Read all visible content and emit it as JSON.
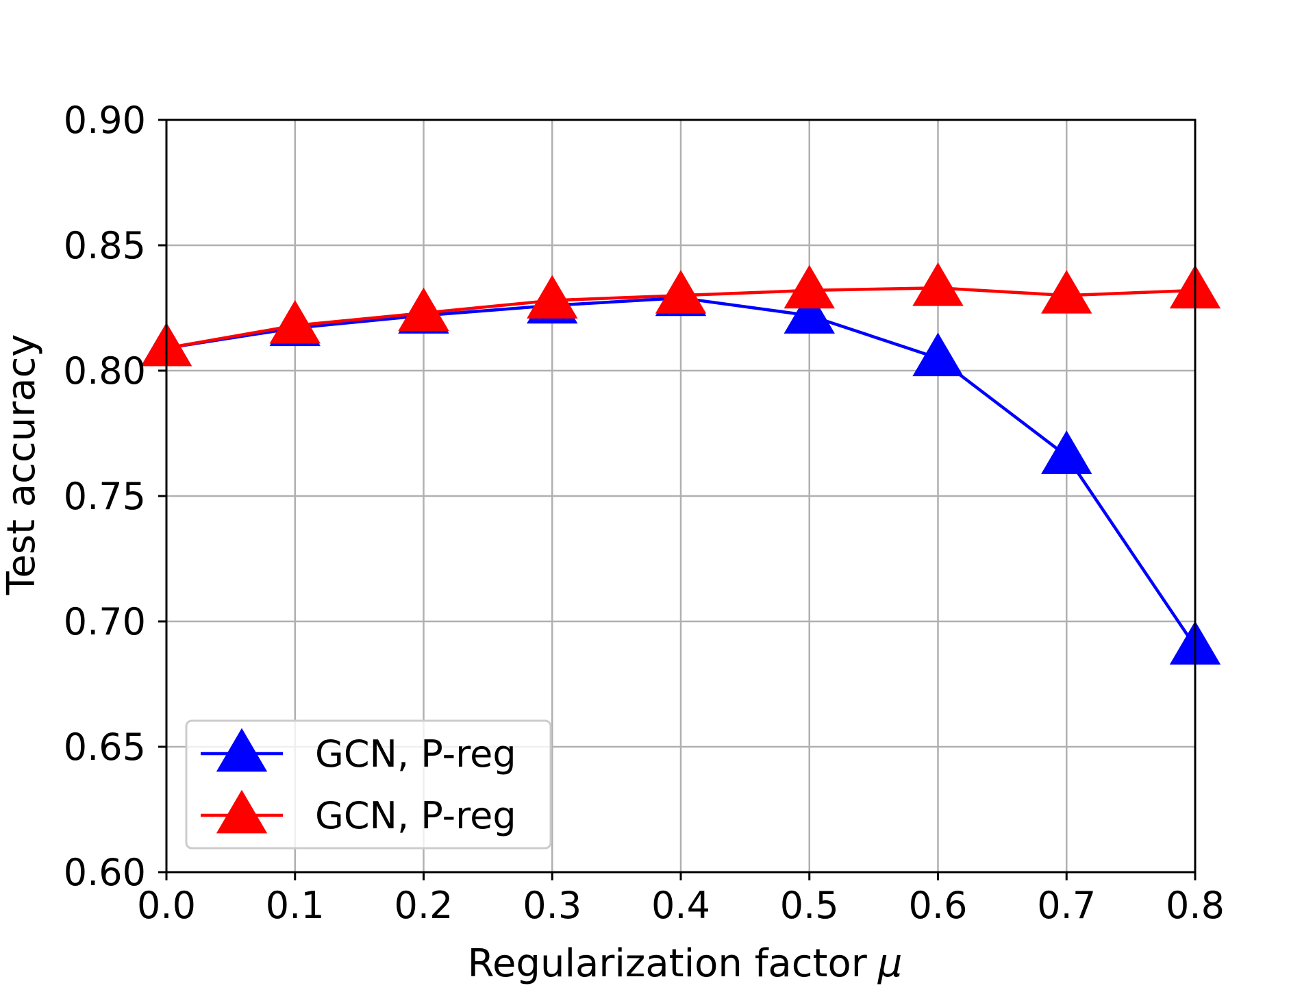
{
  "chart_data": {
    "type": "line",
    "title": "",
    "xlabel": "Regularization factor",
    "xlabel_symbol": "μ",
    "ylabel": "Test accuracy",
    "x": [
      0.0,
      0.1,
      0.2,
      0.3,
      0.4,
      0.5,
      0.6,
      0.7,
      0.8
    ],
    "xlim": [
      0.0,
      0.8
    ],
    "ylim": [
      0.6,
      0.9
    ],
    "xticks": [
      0.0,
      0.1,
      0.2,
      0.3,
      0.4,
      0.5,
      0.6,
      0.7,
      0.8
    ],
    "xtick_labels": [
      "0.0",
      "0.1",
      "0.2",
      "0.3",
      "0.4",
      "0.5",
      "0.6",
      "0.7",
      "0.8"
    ],
    "yticks": [
      0.6,
      0.65,
      0.7,
      0.75,
      0.8,
      0.85,
      0.9
    ],
    "ytick_labels": [
      "0.60",
      "0.65",
      "0.70",
      "0.75",
      "0.80",
      "0.85",
      "0.90"
    ],
    "grid": true,
    "legend_position": "lower-left",
    "series": [
      {
        "name": "GCN, P-reg",
        "color": "#0000ff",
        "marker": "triangle-up",
        "values": [
          0.809,
          0.817,
          0.822,
          0.826,
          0.829,
          0.822,
          0.805,
          0.766,
          0.69
        ]
      },
      {
        "name": "GCN, P-reg",
        "color": "#ff0000",
        "marker": "triangle-up",
        "values": [
          0.809,
          0.818,
          0.823,
          0.828,
          0.83,
          0.832,
          0.833,
          0.83,
          0.832
        ]
      }
    ]
  }
}
